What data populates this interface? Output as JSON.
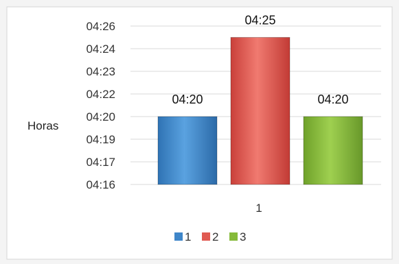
{
  "chart_data": {
    "type": "bar",
    "ylabel": "Horas",
    "y_ticks": [
      "04:16",
      "04:17",
      "04:19",
      "04:20",
      "04:22",
      "04:23",
      "04:24",
      "04:26"
    ],
    "ylim": [
      "04:16",
      "04:26"
    ],
    "categories": [
      "1"
    ],
    "grid": true,
    "legend_position": "bottom",
    "series": [
      {
        "name": "1",
        "value": "04:20",
        "data_label": "04:20",
        "color": "#3f86c9"
      },
      {
        "name": "2",
        "value": "04:25",
        "data_label": "04:25",
        "color": "#e05a52"
      },
      {
        "name": "3",
        "value": "04:20",
        "data_label": "04:20",
        "color": "#86ba3a"
      }
    ]
  }
}
